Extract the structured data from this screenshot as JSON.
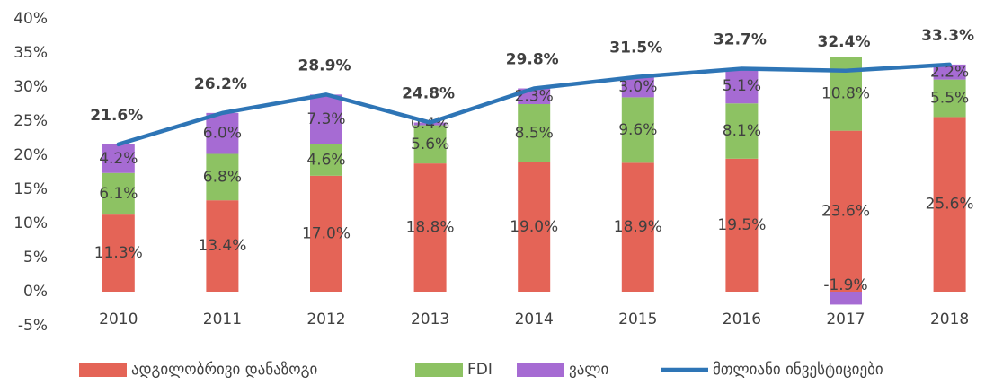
{
  "chart_data": {
    "type": "stacked_bar_line",
    "categories": [
      "2010",
      "2011",
      "2012",
      "2013",
      "2014",
      "2015",
      "2016",
      "2017",
      "2018"
    ],
    "series": [
      {
        "name": "ადგილობრივი დანაზოგი",
        "color": "#e46457",
        "kind": "bar",
        "values": [
          11.3,
          13.4,
          17.0,
          18.8,
          19.0,
          18.9,
          19.5,
          23.6,
          25.6
        ],
        "value_labels": [
          "11.3%",
          "13.4%",
          "17.0%",
          "18.8%",
          "19.0%",
          "18.9%",
          "19.5%",
          "23.6%",
          "25.6%"
        ]
      },
      {
        "name": "FDI",
        "color": "#8dc263",
        "kind": "bar",
        "values": [
          6.1,
          6.8,
          4.6,
          5.6,
          8.5,
          9.6,
          8.1,
          10.8,
          5.5
        ],
        "value_labels": [
          "6.1%",
          "6.8%",
          "4.6%",
          "5.6%",
          "8.5%",
          "9.6%",
          "8.1%",
          "10.8%",
          "5.5%"
        ]
      },
      {
        "name": "ვალი",
        "color": "#a66bd3",
        "kind": "bar",
        "values": [
          4.2,
          6.0,
          7.3,
          0.4,
          2.3,
          3.0,
          5.1,
          -1.9,
          2.2
        ],
        "value_labels": [
          "4.2%",
          "6.0%",
          "7.3%",
          "0.4%",
          "2.3%",
          "3.0%",
          "5.1%",
          "-1.9%",
          "2.2%"
        ]
      },
      {
        "name": "მთლიანი ინვესტიციები",
        "color": "#2e75b6",
        "kind": "line",
        "values": [
          21.6,
          26.2,
          28.9,
          24.8,
          29.8,
          31.5,
          32.7,
          32.4,
          33.3
        ],
        "value_labels": [
          "21.6%",
          "26.2%",
          "28.9%",
          "24.8%",
          "29.8%",
          "31.5%",
          "32.7%",
          "32.4%",
          "33.3%"
        ]
      }
    ],
    "ylim": [
      -5,
      40
    ],
    "yticks": [
      {
        "value": -5,
        "label": "-5%"
      },
      {
        "value": 0,
        "label": "0%"
      },
      {
        "value": 5,
        "label": "5%"
      },
      {
        "value": 10,
        "label": "10%"
      },
      {
        "value": 15,
        "label": "15%"
      },
      {
        "value": 20,
        "label": "20%"
      },
      {
        "value": 25,
        "label": "25%"
      },
      {
        "value": 30,
        "label": "30%"
      },
      {
        "value": 35,
        "label": "35%"
      },
      {
        "value": 40,
        "label": "40%"
      }
    ],
    "grid": false,
    "legend": "bottom"
  }
}
